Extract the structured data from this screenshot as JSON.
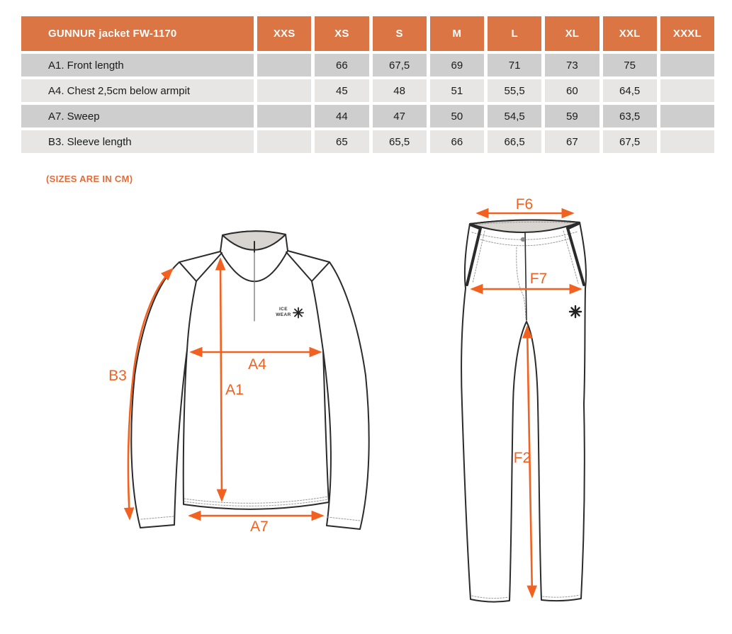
{
  "table": {
    "title": "GUNNUR jacket FW-1170",
    "size_headers": [
      "XXS",
      "XS",
      "S",
      "M",
      "L",
      "XL",
      "XXL",
      "XXXL"
    ],
    "rows": [
      {
        "label": "A1. Front length",
        "values": [
          "",
          "66",
          "67,5",
          "69",
          "71",
          "73",
          "75",
          ""
        ]
      },
      {
        "label": "A4. Chest 2,5cm below armpit",
        "values": [
          "",
          "45",
          "48",
          "51",
          "55,5",
          "60",
          "64,5",
          ""
        ]
      },
      {
        "label": "A7. Sweep",
        "values": [
          "",
          "44",
          "47",
          "50",
          "54,5",
          "59",
          "63,5",
          ""
        ]
      },
      {
        "label": "B3. Sleeve length",
        "values": [
          "",
          "65",
          "65,5",
          "66",
          "66,5",
          "67",
          "67,5",
          ""
        ]
      }
    ]
  },
  "chart_data": {
    "type": "table",
    "title": "GUNNUR jacket FW-1170",
    "columns": [
      "XXS",
      "XS",
      "S",
      "M",
      "L",
      "XL",
      "XXL",
      "XXXL"
    ],
    "rows": [
      {
        "label": "A1. Front length",
        "values": [
          null,
          66,
          67.5,
          69,
          71,
          73,
          75,
          null
        ]
      },
      {
        "label": "A4. Chest 2,5cm below armpit",
        "values": [
          null,
          45,
          48,
          51,
          55.5,
          60,
          64.5,
          null
        ]
      },
      {
        "label": "A7. Sweep",
        "values": [
          null,
          44,
          47,
          50,
          54.5,
          59,
          63.5,
          null
        ]
      },
      {
        "label": "B3. Sleeve length",
        "values": [
          null,
          65,
          65.5,
          66,
          66.5,
          67,
          67.5,
          null
        ]
      }
    ],
    "units": "cm"
  },
  "note": "(SIZES ARE IN CM)",
  "jacket": {
    "labels": {
      "b3": "B3",
      "a4": "A4",
      "a1": "A1",
      "a7": "A7"
    },
    "logo": {
      "line1": "ICE",
      "line2": "WEAR"
    }
  },
  "pants": {
    "labels": {
      "f6": "F6",
      "f7": "F7",
      "f2": "F2"
    }
  },
  "colors": {
    "header_orange": "#DB7544",
    "arrow_orange": "#F2611F",
    "note_orange": "#E46B38",
    "row_dark": "#CFCECE",
    "row_light": "#E7E6E5",
    "line_dark": "#2B2B2B",
    "collar_gray": "#D8D5D1"
  }
}
